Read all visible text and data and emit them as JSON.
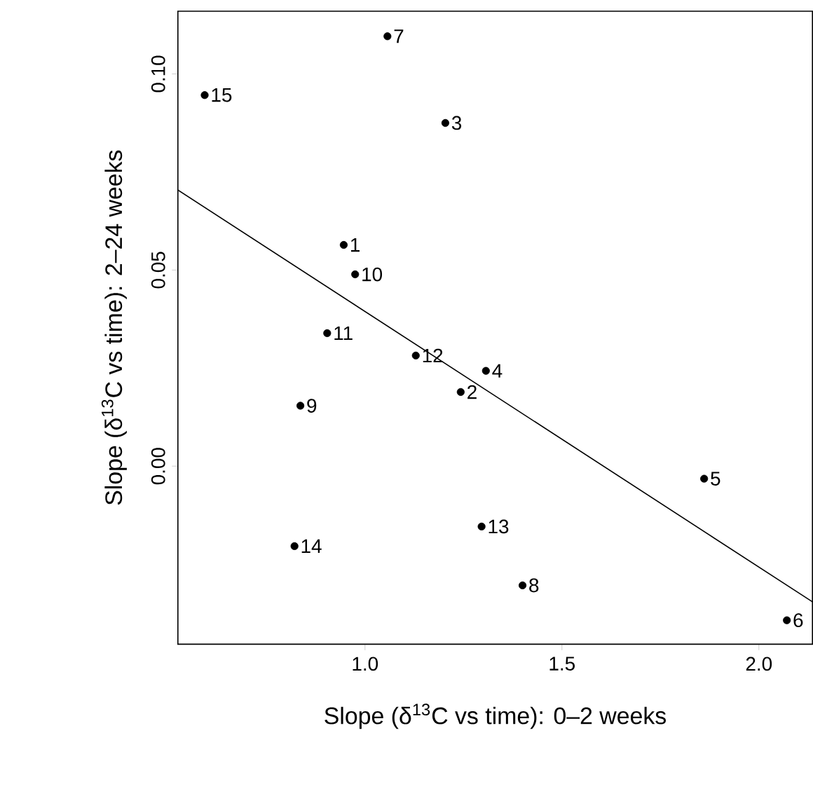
{
  "chart_data": {
    "type": "scatter",
    "xlabel": "Slope (δ$^{13}$C vs time): 0–2 weeks",
    "ylabel": "Slope (δ$^{13}$C vs time): 2–24 weeks",
    "xlim": [
      0.525,
      2.136
    ],
    "ylim": [
      -0.0454,
      0.116
    ],
    "xticks": [
      {
        "value": 1,
        "label": "1.0"
      },
      {
        "value": 1.5,
        "label": "1.5"
      },
      {
        "value": 2,
        "label": "2.0"
      }
    ],
    "yticks": [
      {
        "value": 0,
        "label": "0.00"
      },
      {
        "value": 0.05,
        "label": "0.05"
      },
      {
        "value": 0.1,
        "label": "0.10"
      }
    ],
    "series": [
      {
        "type": "scatter",
        "marker": "circle",
        "color": "#000000",
        "x": [
          0.946,
          1.243,
          1.204,
          1.307,
          1.861,
          2.071,
          1.057,
          1.4,
          0.836,
          0.975,
          0.904,
          1.129,
          1.296,
          0.821,
          0.593
        ],
        "values": [
          0.0564,
          0.0189,
          0.0875,
          0.0243,
          -0.0032,
          -0.0393,
          0.1096,
          -0.0304,
          0.0154,
          0.0489,
          0.0339,
          0.0282,
          -0.0154,
          -0.0204,
          0.0946
        ]
      },
      {
        "type": "line",
        "marker": "none",
        "color": "#000000",
        "x": [
          0.525,
          2.136
        ],
        "values": [
          0.0704,
          -0.0346
        ]
      }
    ],
    "annotations": [
      {
        "text": "1",
        "x": 0.946,
        "y": 0.0564
      },
      {
        "text": "2",
        "x": 1.243,
        "y": 0.0189
      },
      {
        "text": "3",
        "x": 1.204,
        "y": 0.0875
      },
      {
        "text": "4",
        "x": 1.307,
        "y": 0.0243
      },
      {
        "text": "5",
        "x": 1.861,
        "y": -0.0032
      },
      {
        "text": "6",
        "x": 2.071,
        "y": -0.0393
      },
      {
        "text": "7",
        "x": 1.057,
        "y": 0.1096
      },
      {
        "text": "8",
        "x": 1.4,
        "y": -0.0304
      },
      {
        "text": "9",
        "x": 0.836,
        "y": 0.0154
      },
      {
        "text": "10",
        "x": 0.975,
        "y": 0.0489
      },
      {
        "text": "11",
        "x": 0.904,
        "y": 0.0339
      },
      {
        "text": "12",
        "x": 1.129,
        "y": 0.0282
      },
      {
        "text": "13",
        "x": 1.296,
        "y": -0.0154
      },
      {
        "text": "14",
        "x": 0.821,
        "y": -0.0204
      },
      {
        "text": "15",
        "x": 0.593,
        "y": 0.0946
      }
    ]
  }
}
